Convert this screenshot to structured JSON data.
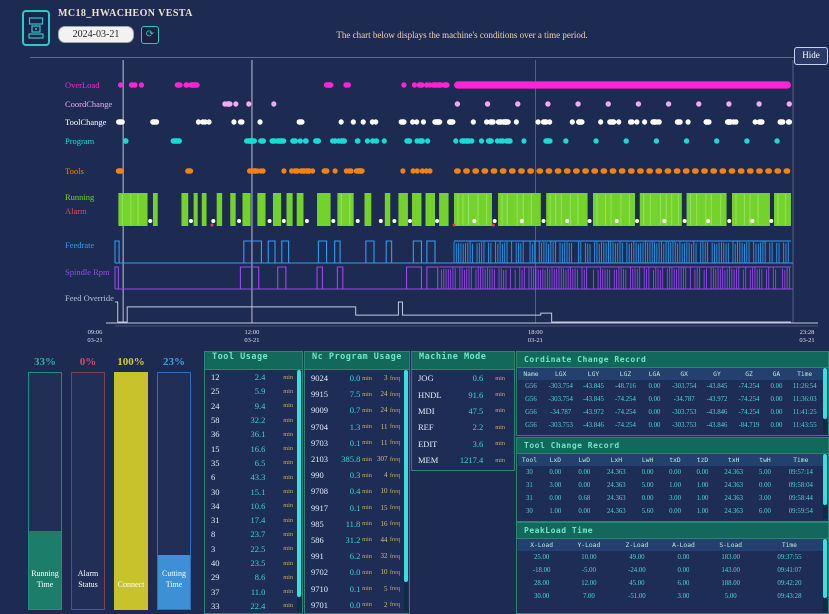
{
  "header": {
    "title": "MC18_HWACHEON VESTA",
    "date_value": "2024-03-21",
    "refresh_icon": "⟳",
    "description": "The chart below displays the machine's conditions over a time period.",
    "hide_label": "Hide"
  },
  "kpis": [
    {
      "label": "Running Time",
      "percent": "33%",
      "value": 33,
      "fill": "#1d7d6b",
      "border": "#1f8f7c",
      "pct_color": "#2fae9d"
    },
    {
      "label": "Alarm Status",
      "percent": "0%",
      "value": 0,
      "fill": "#c24545",
      "border": "#7e4450",
      "pct_color": "#e0485e"
    },
    {
      "label": "Connect",
      "percent": "100%",
      "value": 100,
      "fill": "#c8c32b",
      "border": "#c8c32b",
      "pct_color": "#d2cb2e"
    },
    {
      "label": "Cutting Time",
      "percent": "23%",
      "value": 23,
      "fill": "#3d8fd6",
      "border": "#2f6fc0",
      "pct_color": "#3fa0e0"
    }
  ],
  "tables": {
    "tool_usage": {
      "title": "Tool Usage",
      "unit": "min",
      "cols": [
        {
          "k": 0,
          "c": "cid"
        },
        {
          "k": 1,
          "c": "cval"
        },
        {
          "u": "min",
          "c": "cunit"
        }
      ],
      "rows": [
        [
          "12",
          "2.4"
        ],
        [
          "25",
          "5.9"
        ],
        [
          "24",
          "9.4"
        ],
        [
          "58",
          "32.2"
        ],
        [
          "36",
          "36.1"
        ],
        [
          "15",
          "16.6"
        ],
        [
          "35",
          "6.5"
        ],
        [
          "6",
          "43.3"
        ],
        [
          "30",
          "15.1"
        ],
        [
          "34",
          "10.6"
        ],
        [
          "31",
          "17.4"
        ],
        [
          "8",
          "23.7"
        ],
        [
          "3",
          "22.5"
        ],
        [
          "40",
          "23.5"
        ],
        [
          "29",
          "8.6"
        ],
        [
          "37",
          "11.0"
        ],
        [
          "33",
          "22.4"
        ]
      ]
    },
    "nc_program": {
      "title": "Nc Program Usage",
      "unit": "min",
      "unit2": "freq",
      "cols": [
        {
          "k": 0,
          "c": "cid"
        },
        {
          "k": 1,
          "c": "cval"
        },
        {
          "u": "min",
          "c": "cunit"
        },
        {
          "k": 2,
          "c": "cfreq"
        },
        {
          "u": "freq",
          "c": "cunit"
        }
      ],
      "rows": [
        [
          "9024",
          "0.0",
          "3"
        ],
        [
          "9915",
          "7.5",
          "24"
        ],
        [
          "9009",
          "0.7",
          "24"
        ],
        [
          "9704",
          "1.3",
          "11"
        ],
        [
          "9703",
          "0.1",
          "11"
        ],
        [
          "2103",
          "385.8",
          "307"
        ],
        [
          "990",
          "0.3",
          "4"
        ],
        [
          "9708",
          "0.4",
          "10"
        ],
        [
          "9917",
          "0.1",
          "15"
        ],
        [
          "985",
          "11.8",
          "16"
        ],
        [
          "586",
          "31.2",
          "44"
        ],
        [
          "991",
          "6.2",
          "32"
        ],
        [
          "9702",
          "0.0",
          "10"
        ],
        [
          "9710",
          "0.1",
          "5"
        ],
        [
          "9701",
          "0.0",
          "2"
        ]
      ]
    },
    "machine_mode": {
      "title": "Machine Mode",
      "unit": "min",
      "cols": [
        {
          "k": 0,
          "c": "cid"
        },
        {
          "k": 1,
          "c": "cval"
        },
        {
          "u": "min",
          "c": "cunit"
        }
      ],
      "rows": [
        [
          "JOG",
          "0.6"
        ],
        [
          "HNDL",
          "91.6"
        ],
        [
          "MDI",
          "47.5"
        ],
        [
          "REF",
          "2.2"
        ],
        [
          "EDIT",
          "3.6"
        ],
        [
          "MEM",
          "1217.4"
        ]
      ]
    },
    "coord_change": {
      "title": "Cordinate Change Record",
      "headers": [
        "Name",
        "LGX",
        "LGY",
        "LGZ",
        "LGA",
        "GX",
        "GY",
        "GZ",
        "GA",
        "Time"
      ],
      "rows": [
        [
          "G56",
          "-303.754",
          "-43.845",
          "-48.716",
          "0.00",
          "-303.754",
          "-43.845",
          "-74.254",
          "0.00",
          "11:26:54"
        ],
        [
          "G56",
          "-303.754",
          "-43.845",
          "-74.254",
          "0.00",
          "-34.787",
          "-43.972",
          "-74.254",
          "0.00",
          "11:36:03"
        ],
        [
          "G56",
          "-34.787",
          "-43.972",
          "-74.254",
          "0.00",
          "-303.753",
          "-43.846",
          "-74.254",
          "0.00",
          "11:41:25"
        ],
        [
          "G56",
          "-303.753",
          "-43.846",
          "-74.254",
          "0.00",
          "-303.753",
          "-43.846",
          "-84.719",
          "0.00",
          "11:43:55"
        ]
      ]
    },
    "tool_change": {
      "title": "Tool Change Record",
      "headers": [
        "Tool",
        "LxD",
        "LwD",
        "LxH",
        "LwH",
        "txD",
        "tzD",
        "txH",
        "twH",
        "Time"
      ],
      "rows": [
        [
          "30",
          "0.00",
          "0.00",
          "24.363",
          "0.00",
          "0.00",
          "0.00",
          "24.363",
          "5.00",
          "09:57:14"
        ],
        [
          "31",
          "3.00",
          "0.00",
          "24.363",
          "5.00",
          "1.00",
          "1.00",
          "24.363",
          "0.00",
          "09:58:04"
        ],
        [
          "31",
          "0.00",
          "0.68",
          "24.363",
          "0.00",
          "3.00",
          "1.00",
          "24.363",
          "3.00",
          "09:58:44"
        ],
        [
          "30",
          "1.00",
          "0.00",
          "24.363",
          "5.60",
          "0.00",
          "1.00",
          "24.363",
          "6.00",
          "09:59:54"
        ]
      ]
    },
    "peakload": {
      "title": "PeakLoad Time",
      "headers": [
        "X-Load",
        "Y-Load",
        "Z-Load",
        "A-Load",
        "S-Load",
        "Time"
      ],
      "rows": [
        [
          "25.00",
          "10.00",
          "49.00",
          "0.00",
          "183.00",
          "09:37:55"
        ],
        [
          "-18.00",
          "-5.00",
          "-24.00",
          "0.00",
          "143.00",
          "09:41:07"
        ],
        [
          "28.00",
          "12.00",
          "45.00",
          "6.00",
          "188.00",
          "09:42:20"
        ],
        [
          "30.00",
          "7.00",
          "-51.00",
          "3.00",
          "5.00",
          "09:43:28"
        ]
      ]
    }
  },
  "chart_data": {
    "type": "timeline",
    "title": "Machine conditions over a time period",
    "x_start": "09:06 03-21",
    "x_end": "23:28 03-21",
    "seed": 11,
    "ticks": [
      {
        "t": "09:06",
        "d": "03-21",
        "f": 0
      },
      {
        "t": "12:00",
        "d": "03-21",
        "f": 0.202
      },
      {
        "t": "18:00",
        "d": "03-21",
        "f": 0.62
      },
      {
        "t": "23:28",
        "d": "03-21",
        "f": 1
      }
    ],
    "gridlines": [
      {
        "f": 0.012,
        "o": 0.9
      },
      {
        "f": 0.202,
        "o": 0.9
      },
      {
        "f": 0.62,
        "o": 0.45
      },
      {
        "f": 1,
        "o": 0.45
      }
    ],
    "rows": [
      {
        "id": "overload",
        "label": "OverLoad",
        "color": "#ff22d6",
        "kind": "dots",
        "clusters": [
          [
            0.005,
            0.045,
            6
          ],
          [
            0.085,
            0.135,
            7
          ],
          [
            0.3,
            0.355,
            6
          ],
          [
            0.42,
            0.5,
            9
          ]
        ],
        "solid": [
          [
            0.5,
            0.997
          ]
        ]
      },
      {
        "id": "coordchange",
        "label": "CoordChange",
        "color": "#f2aaec",
        "kind": "dots",
        "clusters": [
          [
            0.155,
            0.205,
            4
          ],
          [
            0.228,
            0.236,
            1
          ]
        ],
        "even": [
          {
            "from": 0.505,
            "to": 0.995,
            "step": 0.0445
          }
        ]
      },
      {
        "id": "toolchange",
        "label": "ToolChange",
        "color": "#ffffff",
        "kind": "dots",
        "clusters": [
          [
            0.0,
            0.012,
            2
          ],
          [
            0.053,
            0.066,
            2
          ],
          [
            0.108,
            0.142,
            4
          ],
          [
            0.172,
            0.192,
            3
          ],
          [
            0.21,
            0.22,
            1
          ],
          [
            0.272,
            0.284,
            1
          ],
          [
            0.33,
            0.385,
            5
          ],
          [
            0.42,
            0.455,
            4
          ],
          [
            0.468,
            0.53,
            7
          ],
          [
            0.54,
            0.61,
            8
          ],
          [
            0.62,
            0.69,
            7
          ],
          [
            0.7,
            0.77,
            7
          ],
          [
            0.78,
            0.85,
            7
          ],
          [
            0.86,
            0.93,
            6
          ],
          [
            0.94,
            0.995,
            5
          ]
        ]
      },
      {
        "id": "program",
        "label": "Program",
        "color": "#18dcd2",
        "kind": "dots",
        "clusters": [
          [
            0.004,
            0.02,
            3
          ],
          [
            0.083,
            0.1,
            3
          ],
          [
            0.193,
            0.252,
            9
          ],
          [
            0.258,
            0.3,
            7
          ],
          [
            0.308,
            0.36,
            8
          ],
          [
            0.368,
            0.405,
            5
          ],
          [
            0.423,
            0.468,
            6
          ],
          [
            0.5,
            0.585,
            14
          ],
          [
            0.6,
            0.645,
            4
          ]
        ],
        "even": [
          {
            "from": 0.665,
            "to": 0.995,
            "step": 0.0445
          }
        ]
      },
      {
        "id": "tools",
        "label": "Tools",
        "color": "#f28211",
        "kind": "dots",
        "clusters": [
          [
            0.004,
            0.016,
            2
          ],
          [
            0.098,
            0.112,
            1
          ],
          [
            0.193,
            0.252,
            8
          ],
          [
            0.258,
            0.315,
            8
          ],
          [
            0.32,
            0.375,
            8
          ],
          [
            0.423,
            0.47,
            6
          ]
        ],
        "dashes": [
          [
            0.5,
            0.997
          ]
        ]
      },
      {
        "id": "alarm",
        "label": "Running",
        "label2": "Alarm",
        "color": "#74d32a",
        "label_color": "#74d32a",
        "label2_color": "#e0485e",
        "kind": "bars",
        "segments": [
          [
            0.005,
            0.048
          ],
          [
            0.056,
            0.063
          ],
          [
            0.098,
            0.108
          ],
          [
            0.116,
            0.122
          ],
          [
            0.128,
            0.135
          ],
          [
            0.15,
            0.158
          ],
          [
            0.17,
            0.178
          ],
          [
            0.188,
            0.2
          ],
          [
            0.21,
            0.222
          ],
          [
            0.233,
            0.245
          ],
          [
            0.253,
            0.262
          ],
          [
            0.268,
            0.278
          ],
          [
            0.298,
            0.318
          ],
          [
            0.328,
            0.352
          ],
          [
            0.368,
            0.378
          ],
          [
            0.398,
            0.406
          ],
          [
            0.418,
            0.432
          ],
          [
            0.438,
            0.452
          ],
          [
            0.458,
            0.472
          ],
          [
            0.478,
            0.492
          ],
          [
            0.5,
            0.556
          ],
          [
            0.565,
            0.628
          ],
          [
            0.636,
            0.697
          ],
          [
            0.705,
            0.767
          ],
          [
            0.774,
            0.836
          ],
          [
            0.843,
            0.902
          ],
          [
            0.91,
            0.966
          ],
          [
            0.972,
            0.997
          ]
        ],
        "white_dots": [
          0.052,
          0.112,
          0.145,
          0.183,
          0.228,
          0.249,
          0.283,
          0.322,
          0.358,
          0.392,
          0.412,
          0.435,
          0.475,
          0.53,
          0.56,
          0.6,
          0.632,
          0.667,
          0.7,
          0.74,
          0.77,
          0.81,
          0.84,
          0.875,
          0.906,
          0.94,
          0.968
        ],
        "red_dots": [
          0.143,
          0.5,
          0.558
        ]
      },
      {
        "id": "feedrate",
        "label": "Feedrate",
        "color": "#2f9ef2",
        "kind": "steps",
        "pulses": [
          [
            0.0,
            0.006
          ],
          [
            0.19,
            0.216
          ],
          [
            0.226,
            0.236
          ],
          [
            0.246,
            0.256
          ],
          [
            0.3,
            0.312
          ],
          [
            0.324,
            0.332
          ],
          [
            0.37,
            0.382
          ],
          [
            0.4,
            0.408
          ],
          [
            0.44,
            0.452
          ],
          [
            0.46,
            0.472
          ]
        ],
        "noise": [
          [
            0.5,
            0.997
          ]
        ]
      },
      {
        "id": "spindle",
        "label": "Spindle Rpm",
        "color": "#9a49ee",
        "kind": "steps",
        "pulses": [
          [
            0.0,
            0.005
          ],
          [
            0.185,
            0.212
          ],
          [
            0.24,
            0.252
          ],
          [
            0.298,
            0.306
          ],
          [
            0.328,
            0.336
          ],
          [
            0.43,
            0.452
          ],
          [
            0.46,
            0.476
          ]
        ],
        "noise": [
          [
            0.478,
            0.997
          ]
        ]
      },
      {
        "id": "override",
        "label": "Feed Override",
        "color": "#c3c9da",
        "label_color": "#b9c0d4",
        "kind": "line",
        "points": [
          [
            0,
            0.95
          ],
          [
            0.004,
            0.95
          ],
          [
            0.004,
            0
          ],
          [
            0.018,
            0
          ],
          [
            0.018,
            0.72
          ],
          [
            0.355,
            0.72
          ],
          [
            0.355,
            0.33
          ],
          [
            0.418,
            0.33
          ],
          [
            0.418,
            0.95
          ],
          [
            0.424,
            0.95
          ],
          [
            0.424,
            0.33
          ],
          [
            0.628,
            0.33
          ],
          [
            0.628,
            0.42
          ],
          [
            0.644,
            0.42
          ],
          [
            0.644,
            0
          ],
          [
            0.997,
            0
          ]
        ]
      }
    ]
  }
}
